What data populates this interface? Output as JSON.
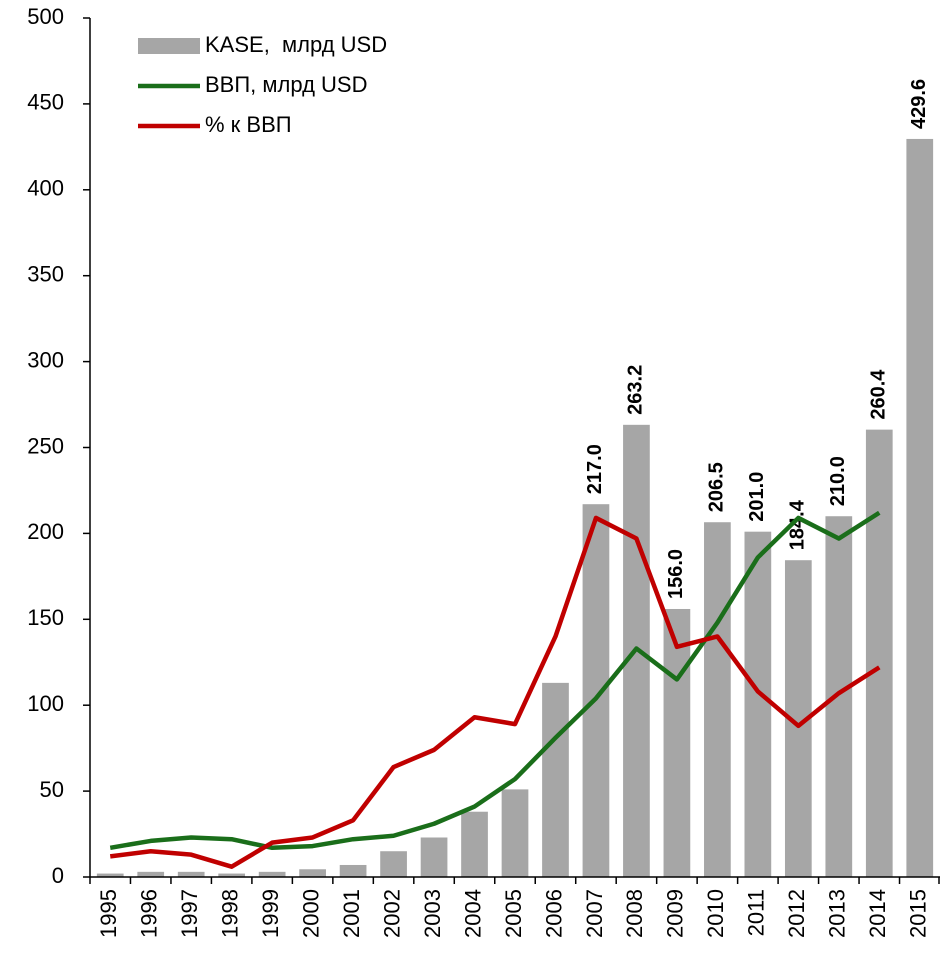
{
  "chart_data": {
    "type": "bar",
    "categories": [
      "1995",
      "1996",
      "1997",
      "1998",
      "1999",
      "2000",
      "2001",
      "2002",
      "2003",
      "2004",
      "2005",
      "2006",
      "2007",
      "2008",
      "2009",
      "2010",
      "2011",
      "2012",
      "2013",
      "2014",
      "2015"
    ],
    "ylim": [
      0,
      500
    ],
    "yticks": [
      0,
      50,
      100,
      150,
      200,
      250,
      300,
      350,
      400,
      450,
      500
    ],
    "legend": "upper left",
    "series": [
      {
        "name": "KASE,  млрд USD",
        "type": "bar",
        "color": "#a6a6a6",
        "values": [
          2,
          3,
          3,
          2,
          3,
          4.5,
          7,
          15,
          23,
          38,
          51,
          113,
          217,
          263.2,
          156,
          206.5,
          201,
          184.4,
          210,
          260.4,
          429.6
        ],
        "value_labels": [
          null,
          null,
          null,
          null,
          null,
          null,
          null,
          null,
          null,
          null,
          null,
          null,
          "217.0",
          "263.2",
          "156.0",
          "206.5",
          "201.0",
          "184.4",
          "210.0",
          "260.4",
          "429.6"
        ]
      },
      {
        "name": "ВВП, млрд USD",
        "type": "line",
        "color": "#1a6e1a",
        "values": [
          17,
          21,
          23,
          22,
          17,
          18,
          22,
          24,
          31,
          41,
          57,
          81,
          104,
          133,
          115,
          148,
          186,
          209,
          197,
          212,
          null
        ]
      },
      {
        "name": "% к ВВП",
        "type": "line",
        "color": "#c00000",
        "values": [
          12,
          15,
          13,
          6,
          20,
          23,
          33,
          64,
          74,
          93,
          89,
          140,
          209,
          197,
          134,
          140,
          108,
          88,
          107,
          122,
          null
        ]
      }
    ]
  }
}
